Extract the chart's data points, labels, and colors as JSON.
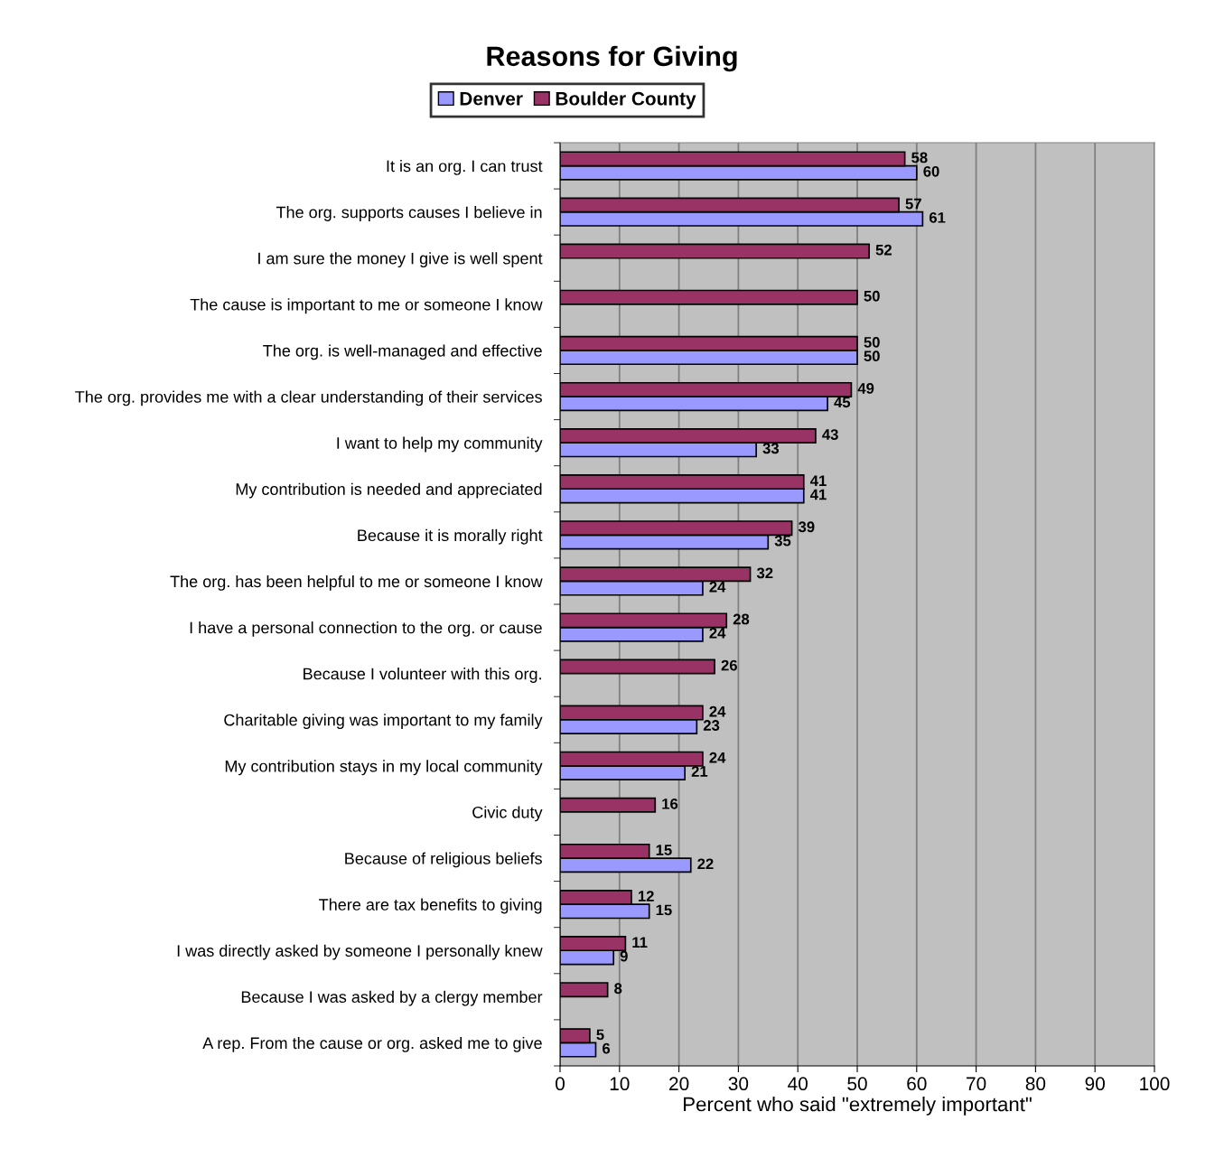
{
  "chart_data": {
    "type": "bar",
    "orientation": "horizontal",
    "title": "Reasons for Giving",
    "xlabel": "Percent who said \"extremely important\"",
    "categories": [
      "It is an org. I can trust",
      "The org. supports causes I believe in",
      "I am sure the money I give is well spent",
      "The cause is important to me or someone I know",
      "The org. is well-managed and effective",
      "The org. provides me with a clear understanding of their services",
      "I want to help my community",
      "My contribution is needed and appreciated",
      "Because it is morally right",
      "The org. has been helpful to me or someone I know",
      "I have a personal connection to the org. or cause",
      "Because I volunteer with this org.",
      "Charitable giving was important to my family",
      "My contribution stays in my local community",
      "Civic duty",
      "Because of religious beliefs",
      "There are tax benefits to giving",
      "I was directly asked by someone I personally knew",
      "Because I was asked by a clergy member",
      "A rep. From the cause or org. asked me to give"
    ],
    "series": [
      {
        "name": "Denver",
        "color": "#9999ff",
        "values": [
          60,
          61,
          null,
          null,
          50,
          45,
          33,
          41,
          35,
          24,
          24,
          null,
          23,
          21,
          null,
          22,
          15,
          9,
          null,
          6
        ]
      },
      {
        "name": "Boulder County",
        "color": "#993366",
        "values": [
          58,
          57,
          52,
          50,
          50,
          49,
          43,
          41,
          39,
          32,
          28,
          26,
          24,
          24,
          16,
          15,
          12,
          11,
          8,
          5
        ]
      }
    ],
    "xlim": [
      0,
      100
    ],
    "xticks": [
      0,
      10,
      20,
      30,
      40,
      50,
      60,
      70,
      80,
      90,
      100
    ],
    "grid": "x",
    "legend": "top",
    "data_labels": true
  }
}
